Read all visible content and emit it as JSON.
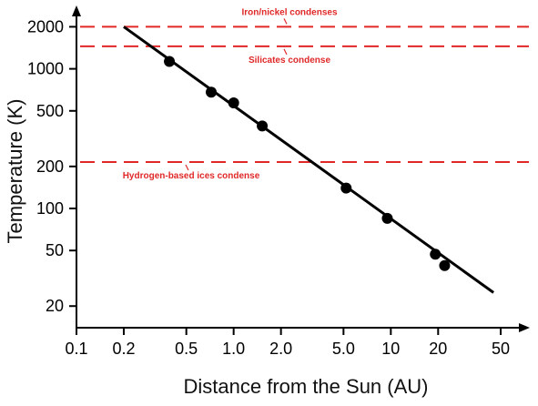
{
  "chart_data": {
    "type": "line",
    "xlabel": "Distance from the Sun (AU)",
    "ylabel": "Temperature (K)",
    "xscale": "log",
    "yscale": "log",
    "xlim": [
      0.1,
      50
    ],
    "ylim": [
      14,
      2800
    ],
    "grid": false,
    "x_ticks": [
      {
        "value": 0.1,
        "label": "0.1"
      },
      {
        "value": 0.2,
        "label": "0.2"
      },
      {
        "value": 0.5,
        "label": "0.5"
      },
      {
        "value": 1,
        "label": "1.0"
      },
      {
        "value": 2,
        "label": "2.0"
      },
      {
        "value": 5,
        "label": "5.0"
      },
      {
        "value": 10,
        "label": "10"
      },
      {
        "value": 20,
        "label": "20"
      },
      {
        "value": 50,
        "label": "50"
      }
    ],
    "y_ticks": [
      {
        "value": 20,
        "label": "20"
      },
      {
        "value": 50,
        "label": "50"
      },
      {
        "value": 100,
        "label": "100"
      },
      {
        "value": 200,
        "label": "200"
      },
      {
        "value": 500,
        "label": "500"
      },
      {
        "value": 1000,
        "label": "1000"
      },
      {
        "value": 2000,
        "label": "2000"
      }
    ],
    "line": {
      "x": [
        0.2,
        45
      ],
      "y": [
        2000,
        25
      ]
    },
    "points": [
      {
        "x": 0.39,
        "y": 1130
      },
      {
        "x": 0.72,
        "y": 680
      },
      {
        "x": 1.0,
        "y": 570
      },
      {
        "x": 1.52,
        "y": 390
      },
      {
        "x": 5.2,
        "y": 140
      },
      {
        "x": 9.5,
        "y": 85
      },
      {
        "x": 19.2,
        "y": 47
      },
      {
        "x": 22,
        "y": 39
      }
    ],
    "reference_lines": [
      {
        "y": 2000,
        "label": "Iron/nickel condenses",
        "label_side": "above"
      },
      {
        "y": 1450,
        "label": "Silicates condense",
        "label_side": "below"
      },
      {
        "y": 215,
        "label": "Hydrogen-based ices condense",
        "label_side": "below"
      }
    ],
    "colors": {
      "data": "#000000",
      "reference": "#e02828",
      "axis": "#000000"
    }
  }
}
